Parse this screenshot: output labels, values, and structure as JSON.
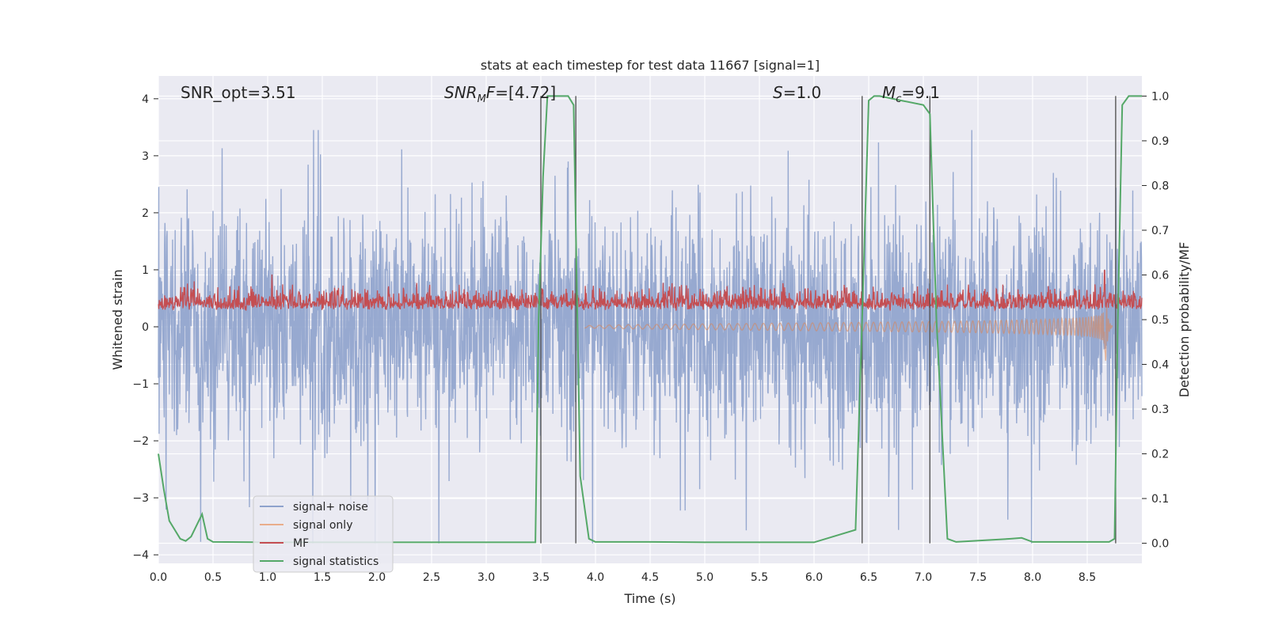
{
  "chart_data": {
    "type": "line",
    "title": "stats at each timestep for test data 11667 [signal=1]",
    "xlabel": "Time (s)",
    "ylabel": "Whitened strain",
    "y2label": "Detection probability/MF",
    "xlim": [
      0.0,
      9.0
    ],
    "ylim": [
      -4.15,
      4.4
    ],
    "y2lim": [
      -0.045,
      1.045
    ],
    "xticks": [
      "0.0",
      "0.5",
      "1.0",
      "1.5",
      "2.0",
      "2.5",
      "3.0",
      "3.5",
      "4.0",
      "4.5",
      "5.0",
      "5.5",
      "6.0",
      "6.5",
      "7.0",
      "7.5",
      "8.0",
      "8.5"
    ],
    "yticks": [
      "−4",
      "−3",
      "−2",
      "−1",
      "0",
      "1",
      "2",
      "3",
      "4"
    ],
    "y2ticks": [
      "0.0",
      "0.1",
      "0.2",
      "0.3",
      "0.4",
      "0.5",
      "0.6",
      "0.7",
      "0.8",
      "0.9",
      "1.0"
    ],
    "grid": true,
    "legend_position": "lower-left",
    "annotations": [
      {
        "key": "snr_opt",
        "label": "SNR_opt=3.51"
      },
      {
        "key": "snr_mf",
        "label": "SNR_MF=[4.72]"
      },
      {
        "key": "s",
        "label": "S=1.0"
      },
      {
        "key": "mc",
        "label": "M_c=9.1"
      }
    ],
    "vertical_lines_x": [
      3.5,
      3.82,
      6.44,
      7.06,
      8.76
    ],
    "series": [
      {
        "name": "signal+ noise",
        "color": "#8ea2cc",
        "kind": "noise",
        "abs_range": [
          -3.8,
          3.45
        ]
      },
      {
        "name": "signal only",
        "color": "#dd8452",
        "kind": "chirp",
        "merger_x": 8.67,
        "min_value": -0.65
      },
      {
        "name": "MF",
        "color": "#c44e52",
        "kind": "mf",
        "y2_range": [
          0.5,
          0.62
        ],
        "peak": 0.61
      },
      {
        "name": "signal statistics",
        "color": "#55a868",
        "kind": "line",
        "x": [
          0.0,
          0.05,
          0.1,
          0.2,
          0.25,
          0.3,
          0.4,
          0.45,
          0.5,
          1.0,
          2.0,
          3.0,
          3.45,
          3.48,
          3.52,
          3.56,
          3.6,
          3.66,
          3.75,
          3.8,
          3.86,
          3.94,
          4.0,
          4.5,
          5.0,
          6.0,
          6.38,
          6.44,
          6.5,
          6.55,
          6.6,
          6.8,
          7.0,
          7.06,
          7.12,
          7.22,
          7.3,
          7.8,
          7.9,
          8.0,
          8.7,
          8.75,
          8.78,
          8.82,
          8.88,
          8.95,
          9.0
        ],
        "y": [
          0.2,
          0.12,
          0.05,
          0.01,
          0.005,
          0.015,
          0.065,
          0.01,
          0.003,
          0.002,
          0.002,
          0.002,
          0.002,
          0.5,
          0.82,
          1.0,
          1.0,
          1.0,
          1.0,
          0.98,
          0.15,
          0.01,
          0.003,
          0.003,
          0.002,
          0.002,
          0.03,
          0.5,
          0.99,
          1.0,
          1.0,
          0.99,
          0.98,
          0.96,
          0.5,
          0.01,
          0.003,
          0.01,
          0.012,
          0.003,
          0.003,
          0.01,
          0.5,
          0.98,
          1.0,
          1.0,
          1.0
        ]
      }
    ]
  }
}
